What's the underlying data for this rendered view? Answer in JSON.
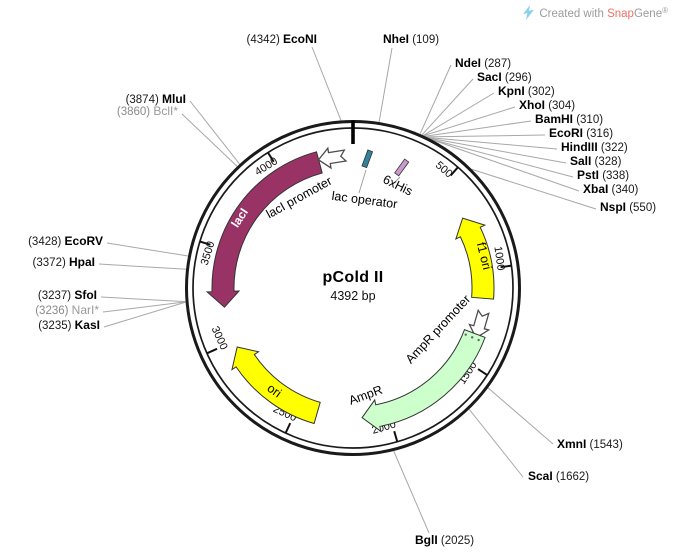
{
  "watermark": {
    "prefix": "Created with ",
    "brand_a": "Snap",
    "brand_b": "Gene",
    "registered": "®"
  },
  "plasmid": {
    "name": "pCold II",
    "size": "4392 bp",
    "length_bp": 4392
  },
  "scale_ticks": [
    {
      "pos": 500,
      "label": "500"
    },
    {
      "pos": 1000,
      "label": "1000"
    },
    {
      "pos": 1500,
      "label": "1500"
    },
    {
      "pos": 2000,
      "label": "2000"
    },
    {
      "pos": 2500,
      "label": "2500"
    },
    {
      "pos": 3000,
      "label": "3000"
    },
    {
      "pos": 3500,
      "label": "3500"
    },
    {
      "pos": 4000,
      "label": "4000"
    }
  ],
  "enzymes": [
    {
      "name": "EcoNI",
      "site": 4342,
      "format": "pos-first",
      "muted": false
    },
    {
      "name": "NheI",
      "site": 109,
      "format": "name-first",
      "muted": false
    },
    {
      "name": "NdeI",
      "site": 287,
      "format": "name-first",
      "muted": false
    },
    {
      "name": "SacI",
      "site": 296,
      "format": "name-first",
      "muted": false
    },
    {
      "name": "KpnI",
      "site": 302,
      "format": "name-first",
      "muted": false
    },
    {
      "name": "XhoI",
      "site": 304,
      "format": "name-first",
      "muted": false
    },
    {
      "name": "BamHI",
      "site": 310,
      "format": "name-first",
      "muted": false
    },
    {
      "name": "EcoRI",
      "site": 316,
      "format": "name-first",
      "muted": false
    },
    {
      "name": "HindIII",
      "site": 322,
      "format": "name-first",
      "muted": false
    },
    {
      "name": "SalI",
      "site": 328,
      "format": "name-first",
      "muted": false
    },
    {
      "name": "PstI",
      "site": 338,
      "format": "name-first",
      "muted": false
    },
    {
      "name": "XbaI",
      "site": 340,
      "format": "name-first",
      "muted": false
    },
    {
      "name": "NspI",
      "site": 550,
      "format": "name-first",
      "muted": false
    },
    {
      "name": "XmnI",
      "site": 1543,
      "format": "name-first",
      "muted": false
    },
    {
      "name": "ScaI",
      "site": 1662,
      "format": "name-first",
      "muted": false
    },
    {
      "name": "BglI",
      "site": 2025,
      "format": "name-first",
      "muted": false
    },
    {
      "name": "EcoRV",
      "site": 3428,
      "format": "pos-first",
      "muted": false
    },
    {
      "name": "HpaI",
      "site": 3372,
      "format": "pos-first",
      "muted": false
    },
    {
      "name": "SfoI",
      "site": 3237,
      "format": "pos-first",
      "muted": false
    },
    {
      "name": "NarI*",
      "site": 3236,
      "format": "pos-first",
      "muted": true
    },
    {
      "name": "KasI",
      "site": 3235,
      "format": "pos-first",
      "muted": false
    },
    {
      "name": "MluI",
      "site": 3874,
      "format": "pos-first",
      "muted": false
    },
    {
      "name": "BclI*",
      "site": 3860,
      "format": "pos-first",
      "muted": true
    }
  ],
  "features": [
    {
      "id": "lacI",
      "label": "lacI",
      "type": "arrow",
      "color": "#993366",
      "tail_angle": 345,
      "tip_angle": 261.5,
      "clockwise": false
    },
    {
      "id": "lacI-promoter",
      "label": "lacI promoter",
      "type": "promoter",
      "color": "#ffffff",
      "angle": 351,
      "clockwise": false
    },
    {
      "id": "lac-operator",
      "label": "lac operator",
      "type": "marker",
      "color": "#31849b",
      "angle": 6.3
    },
    {
      "id": "his6",
      "label": "6xHis",
      "type": "marker",
      "color": "#cc99cc",
      "angle": 22
    },
    {
      "id": "f1-ori",
      "label": "f1 ori",
      "type": "arrow",
      "color": "#ffff00",
      "tail_angle": 94.5,
      "tip_angle": 57.5,
      "clockwise": false
    },
    {
      "id": "AmpR-promoter",
      "label": "AmpR promoter",
      "type": "promoter",
      "color": "#ffffff",
      "angle": 106,
      "clockwise": true
    },
    {
      "id": "AmpR",
      "label": "AmpR",
      "type": "arrow",
      "color": "#ccffcc",
      "tail_angle": 110.5,
      "tip_angle": 176,
      "clockwise": true
    },
    {
      "id": "ori",
      "label": "ori",
      "type": "arrow",
      "color": "#ffff00",
      "tail_angle": 196,
      "tip_angle": 243,
      "clockwise": true
    }
  ]
}
